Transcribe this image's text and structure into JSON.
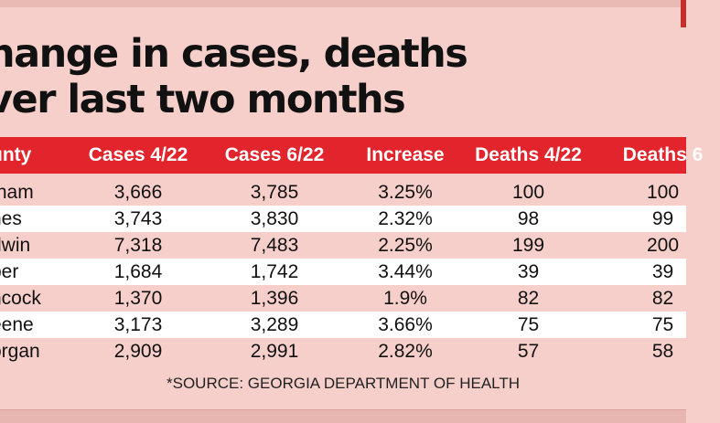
{
  "title": {
    "line1": "hange in cases, deaths",
    "line2": "ver last two months"
  },
  "table": {
    "headers": [
      "unty",
      "Cases 4/22",
      "Cases 6/22",
      "Increase",
      "Deaths 4/22",
      "Deaths 6"
    ],
    "rows": [
      [
        "tnam",
        "3,666",
        "3,785",
        "3.25%",
        "100",
        "100"
      ],
      [
        "nes",
        "3,743",
        "3,830",
        "2.32%",
        "98",
        "99"
      ],
      [
        "dwin",
        "7,318",
        "7,483",
        "2.25%",
        "199",
        "200"
      ],
      [
        "per",
        "1,684",
        "1,742",
        "3.44%",
        "39",
        "39"
      ],
      [
        "ncock",
        "1,370",
        "1,396",
        "1.9%",
        "82",
        "82"
      ],
      [
        "eene",
        "3,173",
        "3,289",
        "3.66%",
        "75",
        "75"
      ],
      [
        "organ",
        "2,909",
        "2,991",
        "2.82%",
        "57",
        "58"
      ]
    ]
  },
  "source": "*SOURCE: GEORGIA DEPARTMENT OF HEALTH",
  "colors": {
    "header": "#e2252d",
    "background": "#f6cfcb",
    "alt_row": "#ffffff"
  }
}
